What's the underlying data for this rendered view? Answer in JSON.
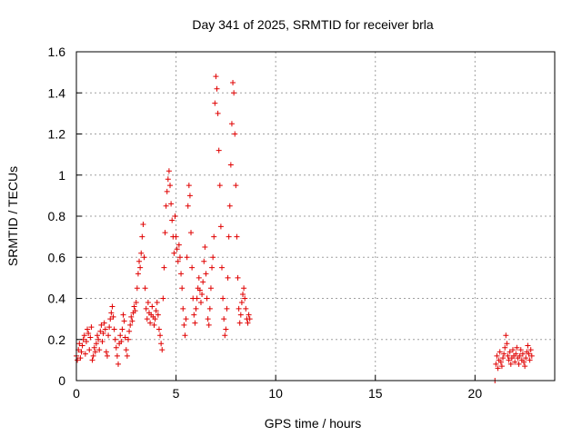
{
  "chart_data": {
    "type": "scatter",
    "title": "Day 341 of 2025, SRMTID for receiver brla",
    "xlabel": "GPS time / hours",
    "ylabel": "SRMTID / TECUs",
    "xlim": [
      0,
      24
    ],
    "ylim": [
      0,
      1.6
    ],
    "xticks": [
      "0",
      "5",
      "10",
      "15",
      "20"
    ],
    "yticks": [
      "0",
      "0.2",
      "0.4",
      "0.6",
      "0.8",
      "1",
      "1.2",
      "1.4",
      "1.6"
    ],
    "grid": true,
    "marker": "plus",
    "color": "#e00000",
    "series": [
      {
        "name": "SRMTID",
        "points": [
          [
            0.0,
            0.12
          ],
          [
            0.05,
            0.1
          ],
          [
            0.1,
            0.15
          ],
          [
            0.15,
            0.18
          ],
          [
            0.2,
            0.11
          ],
          [
            0.25,
            0.14
          ],
          [
            0.3,
            0.17
          ],
          [
            0.35,
            0.2
          ],
          [
            0.4,
            0.22
          ],
          [
            0.45,
            0.13
          ],
          [
            0.5,
            0.19
          ],
          [
            0.55,
            0.25
          ],
          [
            0.6,
            0.23
          ],
          [
            0.65,
            0.15
          ],
          [
            0.7,
            0.21
          ],
          [
            0.75,
            0.26
          ],
          [
            0.8,
            0.1
          ],
          [
            0.85,
            0.12
          ],
          [
            0.9,
            0.16
          ],
          [
            0.95,
            0.14
          ],
          [
            1.0,
            0.18
          ],
          [
            1.05,
            0.22
          ],
          [
            1.1,
            0.2
          ],
          [
            1.15,
            0.15
          ],
          [
            1.2,
            0.24
          ],
          [
            1.25,
            0.27
          ],
          [
            1.3,
            0.19
          ],
          [
            1.35,
            0.23
          ],
          [
            1.4,
            0.28
          ],
          [
            1.45,
            0.25
          ],
          [
            1.5,
            0.14
          ],
          [
            1.55,
            0.12
          ],
          [
            1.6,
            0.22
          ],
          [
            1.65,
            0.26
          ],
          [
            1.7,
            0.3
          ],
          [
            1.75,
            0.33
          ],
          [
            1.8,
            0.36
          ],
          [
            1.85,
            0.31
          ],
          [
            1.9,
            0.25
          ],
          [
            1.95,
            0.2
          ],
          [
            2.0,
            0.16
          ],
          [
            2.05,
            0.12
          ],
          [
            2.1,
            0.08
          ],
          [
            2.15,
            0.18
          ],
          [
            2.2,
            0.22
          ],
          [
            2.25,
            0.19
          ],
          [
            2.3,
            0.25
          ],
          [
            2.35,
            0.32
          ],
          [
            2.4,
            0.29
          ],
          [
            2.45,
            0.21
          ],
          [
            2.5,
            0.15
          ],
          [
            2.55,
            0.12
          ],
          [
            2.6,
            0.2
          ],
          [
            2.65,
            0.24
          ],
          [
            2.7,
            0.27
          ],
          [
            2.75,
            0.31
          ],
          [
            2.8,
            0.29
          ],
          [
            2.85,
            0.33
          ],
          [
            2.9,
            0.36
          ],
          [
            2.95,
            0.34
          ],
          [
            3.0,
            0.38
          ],
          [
            3.05,
            0.45
          ],
          [
            3.1,
            0.52
          ],
          [
            3.15,
            0.58
          ],
          [
            3.2,
            0.55
          ],
          [
            3.25,
            0.62
          ],
          [
            3.3,
            0.7
          ],
          [
            3.35,
            0.76
          ],
          [
            3.4,
            0.6
          ],
          [
            3.45,
            0.45
          ],
          [
            3.5,
            0.35
          ],
          [
            3.55,
            0.3
          ],
          [
            3.6,
            0.38
          ],
          [
            3.65,
            0.33
          ],
          [
            3.7,
            0.28
          ],
          [
            3.75,
            0.32
          ],
          [
            3.8,
            0.36
          ],
          [
            3.85,
            0.31
          ],
          [
            3.9,
            0.27
          ],
          [
            3.95,
            0.3
          ],
          [
            4.0,
            0.34
          ],
          [
            4.05,
            0.38
          ],
          [
            4.1,
            0.32
          ],
          [
            4.15,
            0.25
          ],
          [
            4.2,
            0.22
          ],
          [
            4.25,
            0.18
          ],
          [
            4.3,
            0.15
          ],
          [
            4.35,
            0.4
          ],
          [
            4.4,
            0.55
          ],
          [
            4.45,
            0.72
          ],
          [
            4.5,
            0.85
          ],
          [
            4.55,
            0.92
          ],
          [
            4.6,
            0.98
          ],
          [
            4.65,
            1.02
          ],
          [
            4.7,
            0.95
          ],
          [
            4.75,
            0.86
          ],
          [
            4.8,
            0.78
          ],
          [
            4.85,
            0.7
          ],
          [
            4.9,
            0.62
          ],
          [
            4.95,
            0.8
          ],
          [
            5.0,
            0.7
          ],
          [
            5.05,
            0.64
          ],
          [
            5.1,
            0.58
          ],
          [
            5.15,
            0.66
          ],
          [
            5.2,
            0.6
          ],
          [
            5.25,
            0.52
          ],
          [
            5.3,
            0.45
          ],
          [
            5.35,
            0.35
          ],
          [
            5.4,
            0.27
          ],
          [
            5.45,
            0.22
          ],
          [
            5.5,
            0.3
          ],
          [
            5.55,
            0.6
          ],
          [
            5.6,
            0.85
          ],
          [
            5.65,
            0.95
          ],
          [
            5.7,
            0.9
          ],
          [
            5.75,
            0.72
          ],
          [
            5.8,
            0.55
          ],
          [
            5.85,
            0.4
          ],
          [
            5.9,
            0.32
          ],
          [
            5.95,
            0.28
          ],
          [
            6.0,
            0.35
          ],
          [
            6.05,
            0.4
          ],
          [
            6.1,
            0.45
          ],
          [
            6.15,
            0.5
          ],
          [
            6.2,
            0.44
          ],
          [
            6.25,
            0.38
          ],
          [
            6.3,
            0.42
          ],
          [
            6.35,
            0.48
          ],
          [
            6.4,
            0.58
          ],
          [
            6.45,
            0.65
          ],
          [
            6.5,
            0.52
          ],
          [
            6.55,
            0.4
          ],
          [
            6.6,
            0.3
          ],
          [
            6.65,
            0.27
          ],
          [
            6.7,
            0.35
          ],
          [
            6.75,
            0.45
          ],
          [
            6.8,
            0.55
          ],
          [
            6.85,
            0.6
          ],
          [
            6.9,
            0.7
          ],
          [
            6.95,
            1.35
          ],
          [
            7.0,
            1.48
          ],
          [
            7.05,
            1.42
          ],
          [
            7.1,
            1.3
          ],
          [
            7.15,
            1.12
          ],
          [
            7.2,
            0.95
          ],
          [
            7.25,
            0.75
          ],
          [
            7.3,
            0.55
          ],
          [
            7.35,
            0.4
          ],
          [
            7.4,
            0.3
          ],
          [
            7.45,
            0.22
          ],
          [
            7.5,
            0.25
          ],
          [
            7.55,
            0.35
          ],
          [
            7.6,
            0.5
          ],
          [
            7.65,
            0.7
          ],
          [
            7.7,
            0.85
          ],
          [
            7.75,
            1.05
          ],
          [
            7.8,
            1.25
          ],
          [
            7.85,
            1.45
          ],
          [
            7.9,
            1.4
          ],
          [
            7.95,
            1.2
          ],
          [
            8.0,
            0.95
          ],
          [
            8.05,
            0.7
          ],
          [
            8.1,
            0.5
          ],
          [
            8.15,
            0.35
          ],
          [
            8.2,
            0.28
          ],
          [
            8.25,
            0.32
          ],
          [
            8.3,
            0.38
          ],
          [
            8.35,
            0.42
          ],
          [
            8.4,
            0.45
          ],
          [
            8.45,
            0.4
          ],
          [
            8.5,
            0.35
          ],
          [
            8.55,
            0.3
          ],
          [
            8.6,
            0.28
          ],
          [
            8.65,
            0.32
          ],
          [
            8.7,
            0.3
          ],
          [
            21.0,
            0.0
          ],
          [
            21.05,
            0.08
          ],
          [
            21.1,
            0.12
          ],
          [
            21.15,
            0.06
          ],
          [
            21.2,
            0.1
          ],
          [
            21.25,
            0.14
          ],
          [
            21.3,
            0.09
          ],
          [
            21.35,
            0.07
          ],
          [
            21.4,
            0.11
          ],
          [
            21.45,
            0.13
          ],
          [
            21.5,
            0.16
          ],
          [
            21.55,
            0.22
          ],
          [
            21.6,
            0.18
          ],
          [
            21.65,
            0.12
          ],
          [
            21.7,
            0.1
          ],
          [
            21.75,
            0.14
          ],
          [
            21.8,
            0.08
          ],
          [
            21.85,
            0.11
          ],
          [
            21.9,
            0.15
          ],
          [
            21.95,
            0.12
          ],
          [
            22.0,
            0.09
          ],
          [
            22.05,
            0.13
          ],
          [
            22.1,
            0.16
          ],
          [
            22.15,
            0.11
          ],
          [
            22.2,
            0.08
          ],
          [
            22.25,
            0.12
          ],
          [
            22.3,
            0.15
          ],
          [
            22.35,
            0.1
          ],
          [
            22.4,
            0.13
          ],
          [
            22.45,
            0.09
          ],
          [
            22.5,
            0.07
          ],
          [
            22.55,
            0.11
          ],
          [
            22.6,
            0.14
          ],
          [
            22.65,
            0.17
          ],
          [
            22.7,
            0.13
          ],
          [
            22.75,
            0.1
          ],
          [
            22.8,
            0.15
          ],
          [
            22.85,
            0.12
          ]
        ]
      }
    ]
  }
}
